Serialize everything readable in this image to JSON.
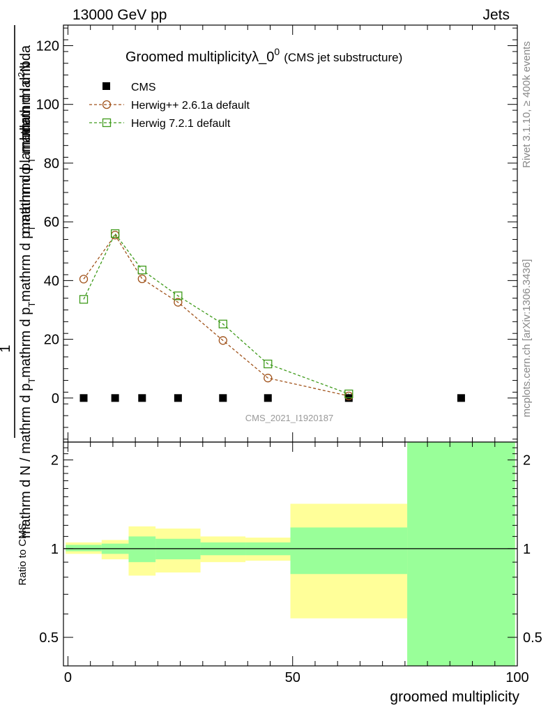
{
  "header": {
    "left": "13000 GeV pp",
    "right": "Jets"
  },
  "side_labels": {
    "rivet": "Rivet 3.1.10, ≥ 400k events",
    "mcplots": "mcplots.cern.ch [arXiv:1306.3436]"
  },
  "watermark": "CMS_2021_I1920187",
  "colors": {
    "cms": "#000000",
    "herwig261": "#a0521a",
    "herwig721": "#3e9a1a",
    "band_yellow": "#ffff99",
    "band_green": "#99ff99"
  },
  "chart_data": [
    {
      "type": "scatter",
      "panel": "main",
      "title_main": "Groomed multiplicityλ_0",
      "title_sup": "0",
      "title_suffix": "(CMS jet substructure)",
      "ylabel": "1 / mathrm d N / mathrm d p_T mathrm d p_T mathrm d lambda  mathrm d²N",
      "ylabel_parts": {
        "numer_line1": "mathrm d",
        "numer_sup": "2",
        "numer_line1b": "N",
        "numer_line2a": "mathrm d p",
        "numer_sub2": "T",
        "numer_line2b": " mathrm d lambda",
        "one": "1",
        "denom_a": "mathrm d N / mathrm d p",
        "denom_sub": "T",
        "denom_b": "mathrm d p"
      },
      "ylim": [
        -15,
        127
      ],
      "yticks": [
        0,
        20,
        40,
        60,
        80,
        100,
        120
      ],
      "ytick_labels": [
        "0",
        "20",
        "40",
        "60",
        "80",
        "100",
        "120"
      ],
      "legend_position": "top-left",
      "series": [
        {
          "name": "CMS",
          "marker": "filled-square",
          "x": [
            3.5,
            10.5,
            16.5,
            24.5,
            34.5,
            44.5,
            62.5,
            87.5
          ],
          "y": [
            0,
            0,
            0,
            0,
            0,
            0,
            0,
            0
          ]
        },
        {
          "name": "Herwig++ 2.6.1a default",
          "marker": "open-circle",
          "line": "dashed",
          "x": [
            3.5,
            10.5,
            16.5,
            24.5,
            34.5,
            44.5,
            62.5
          ],
          "y": [
            40.5,
            55.5,
            40.6,
            32.6,
            19.6,
            6.8,
            0.7
          ]
        },
        {
          "name": "Herwig 7.2.1 default",
          "marker": "open-square",
          "line": "dashed",
          "x": [
            3.5,
            10.5,
            16.5,
            24.5,
            34.5,
            44.5,
            62.5
          ],
          "y": [
            33.6,
            56.0,
            43.6,
            34.8,
            25.2,
            11.6,
            1.4
          ]
        }
      ]
    },
    {
      "type": "area",
      "panel": "ratio",
      "ylabel": "Ratio to CMS",
      "xlabel": "groomed multiplicity",
      "xlim": [
        -1,
        100
      ],
      "xticks": [
        0,
        50,
        100
      ],
      "xtick_labels": [
        "0",
        "50",
        "100"
      ],
      "ylim": [
        0.4,
        2.3
      ],
      "yticks": [
        0.5,
        1,
        2
      ],
      "ytick_labels": [
        "0.5",
        "1",
        "2"
      ],
      "reference_line": 1,
      "bins": [
        {
          "lo": -0.5,
          "hi": 7.5,
          "yellow": [
            0.96,
            1.05
          ],
          "green": [
            0.98,
            1.03
          ]
        },
        {
          "lo": 7.5,
          "hi": 13.5,
          "yellow": [
            0.92,
            1.07
          ],
          "green": [
            0.96,
            1.04
          ]
        },
        {
          "lo": 13.5,
          "hi": 19.5,
          "yellow": [
            0.81,
            1.19
          ],
          "green": [
            0.9,
            1.1
          ]
        },
        {
          "lo": 19.5,
          "hi": 29.5,
          "yellow": [
            0.83,
            1.17
          ],
          "green": [
            0.92,
            1.08
          ]
        },
        {
          "lo": 29.5,
          "hi": 39.5,
          "yellow": [
            0.9,
            1.1
          ],
          "green": [
            0.95,
            1.05
          ]
        },
        {
          "lo": 39.5,
          "hi": 49.5,
          "yellow": [
            0.91,
            1.09
          ],
          "green": [
            0.95,
            1.05
          ]
        },
        {
          "lo": 49.5,
          "hi": 75.5,
          "yellow": [
            0.58,
            1.42
          ],
          "green": [
            0.82,
            1.18
          ]
        },
        {
          "lo": 75.5,
          "hi": 99.5,
          "yellow": [
            0.0,
            9.0
          ],
          "green": [
            0.0,
            9.0
          ]
        }
      ]
    }
  ]
}
